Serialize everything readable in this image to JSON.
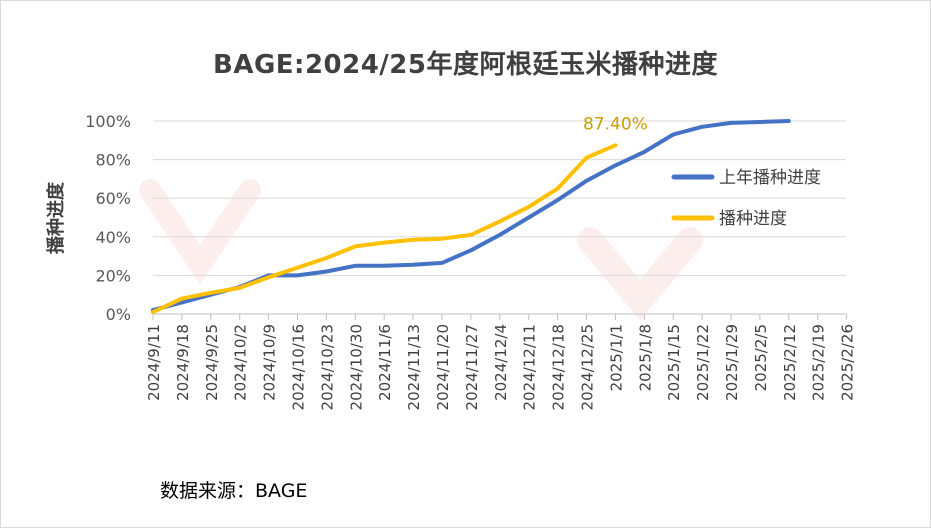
{
  "chart_data": {
    "type": "line",
    "title": "BAGE:2024/25年度阿根廷玉米播种进度",
    "ylabel": "播种进度",
    "xlabel": "",
    "ylim": [
      0,
      100
    ],
    "yticks": [
      "0%",
      "20%",
      "40%",
      "60%",
      "80%",
      "100%"
    ],
    "categories": [
      "2024/9/11",
      "2024/9/18",
      "2024/9/25",
      "2024/10/2",
      "2024/10/9",
      "2024/10/16",
      "2024/10/23",
      "2024/10/30",
      "2024/11/6",
      "2024/11/13",
      "2024/11/20",
      "2024/11/27",
      "2024/12/4",
      "2024/12/11",
      "2024/12/18",
      "2024/12/25",
      "2025/1/1",
      "2025/1/8",
      "2025/1/15",
      "2025/1/22",
      "2025/1/29",
      "2025/2/5",
      "2025/2/12",
      "2025/2/19",
      "2025/2/26"
    ],
    "series": [
      {
        "name": "上年播种进度",
        "color": "#4472C4",
        "values": [
          2,
          6,
          10,
          14,
          20,
          20,
          22,
          25,
          25,
          25.5,
          26.5,
          33,
          41,
          50,
          59,
          69,
          77,
          84,
          93,
          97,
          99,
          99.5,
          100,
          null,
          null
        ]
      },
      {
        "name": "播种进度",
        "color": "#FFC000",
        "values": [
          1,
          8,
          11,
          13.5,
          19,
          24,
          29,
          35,
          37,
          38.5,
          39,
          41,
          48,
          55.5,
          65,
          81,
          87.4,
          null,
          null,
          null,
          null,
          null,
          null,
          null,
          null
        ]
      }
    ],
    "annotations": [
      {
        "text": "87.40%",
        "color": "#C9A000"
      }
    ],
    "legend_position": "right",
    "grid": true
  },
  "source_label": "数据来源：BAGE"
}
